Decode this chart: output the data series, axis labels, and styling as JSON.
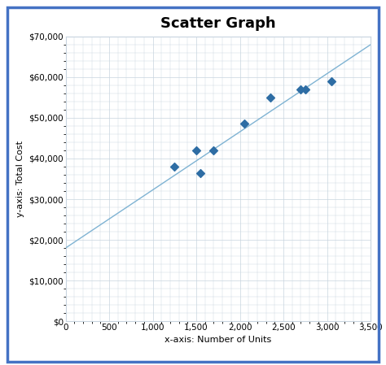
{
  "title": "Scatter Graph",
  "xlabel": "x-axis: Number of Units",
  "ylabel": "y-axis: Total Cost",
  "scatter_x": [
    1250,
    1500,
    1550,
    1700,
    2050,
    2350,
    2700,
    2750,
    3050
  ],
  "scatter_y": [
    38000,
    42000,
    36500,
    42000,
    48500,
    55000,
    57000,
    57000,
    59000
  ],
  "scatter_color": "#2E6DA4",
  "scatter_marker": "D",
  "scatter_size": 25,
  "line_x0": 0,
  "line_x1": 3500,
  "line_y0": 18000,
  "line_y1": 68000,
  "line_color": "#7FB3D3",
  "line_width": 1.0,
  "xlim": [
    0,
    3500
  ],
  "ylim": [
    0,
    70000
  ],
  "xticks": [
    0,
    500,
    1000,
    1500,
    2000,
    2500,
    3000,
    3500
  ],
  "yticks": [
    0,
    10000,
    20000,
    30000,
    40000,
    50000,
    60000,
    70000
  ],
  "background_color": "#FFFFFF",
  "plot_bg_color": "#FFFFFF",
  "grid_color": "#C8D4DF",
  "outer_border_color": "#4472C4",
  "title_fontsize": 13,
  "label_fontsize": 8,
  "tick_fontsize": 7.5
}
